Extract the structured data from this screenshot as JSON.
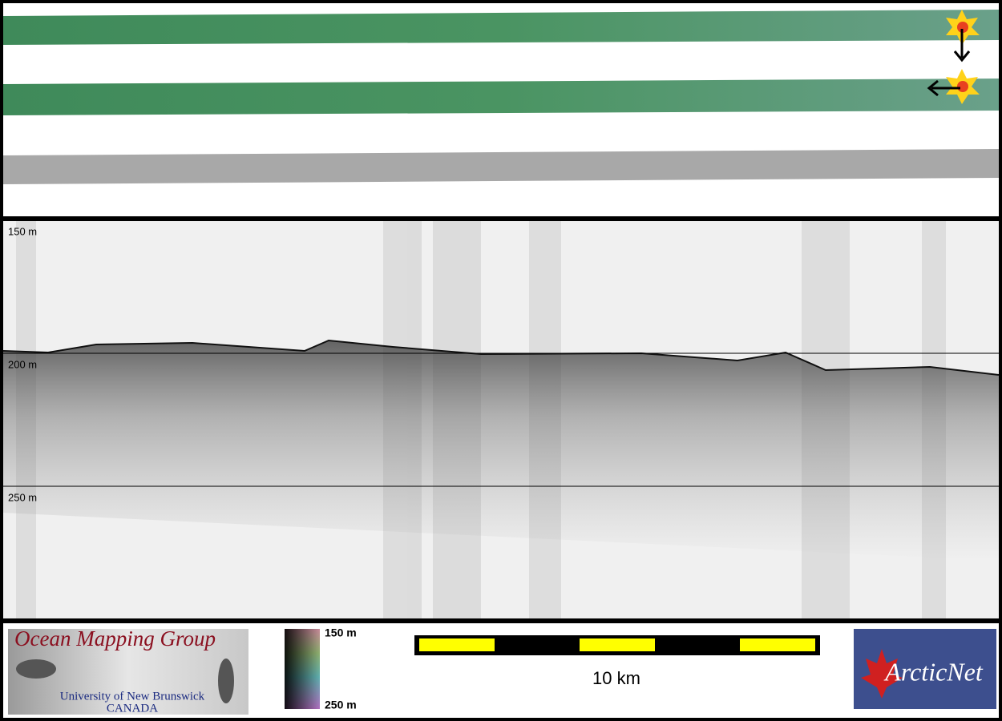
{
  "profile": {
    "depth_labels": [
      "150 m",
      "200 m",
      "250 m"
    ]
  },
  "footer": {
    "logo_left": {
      "title": "Ocean Mapping Group",
      "subtitle": "University of New Brunswick",
      "country": "CANADA"
    },
    "colorbar": {
      "top_label": "150 m",
      "bottom_label": "250 m"
    },
    "scale_bar": {
      "label": "10 km"
    },
    "logo_right": {
      "label": "ArcticNet"
    }
  }
}
